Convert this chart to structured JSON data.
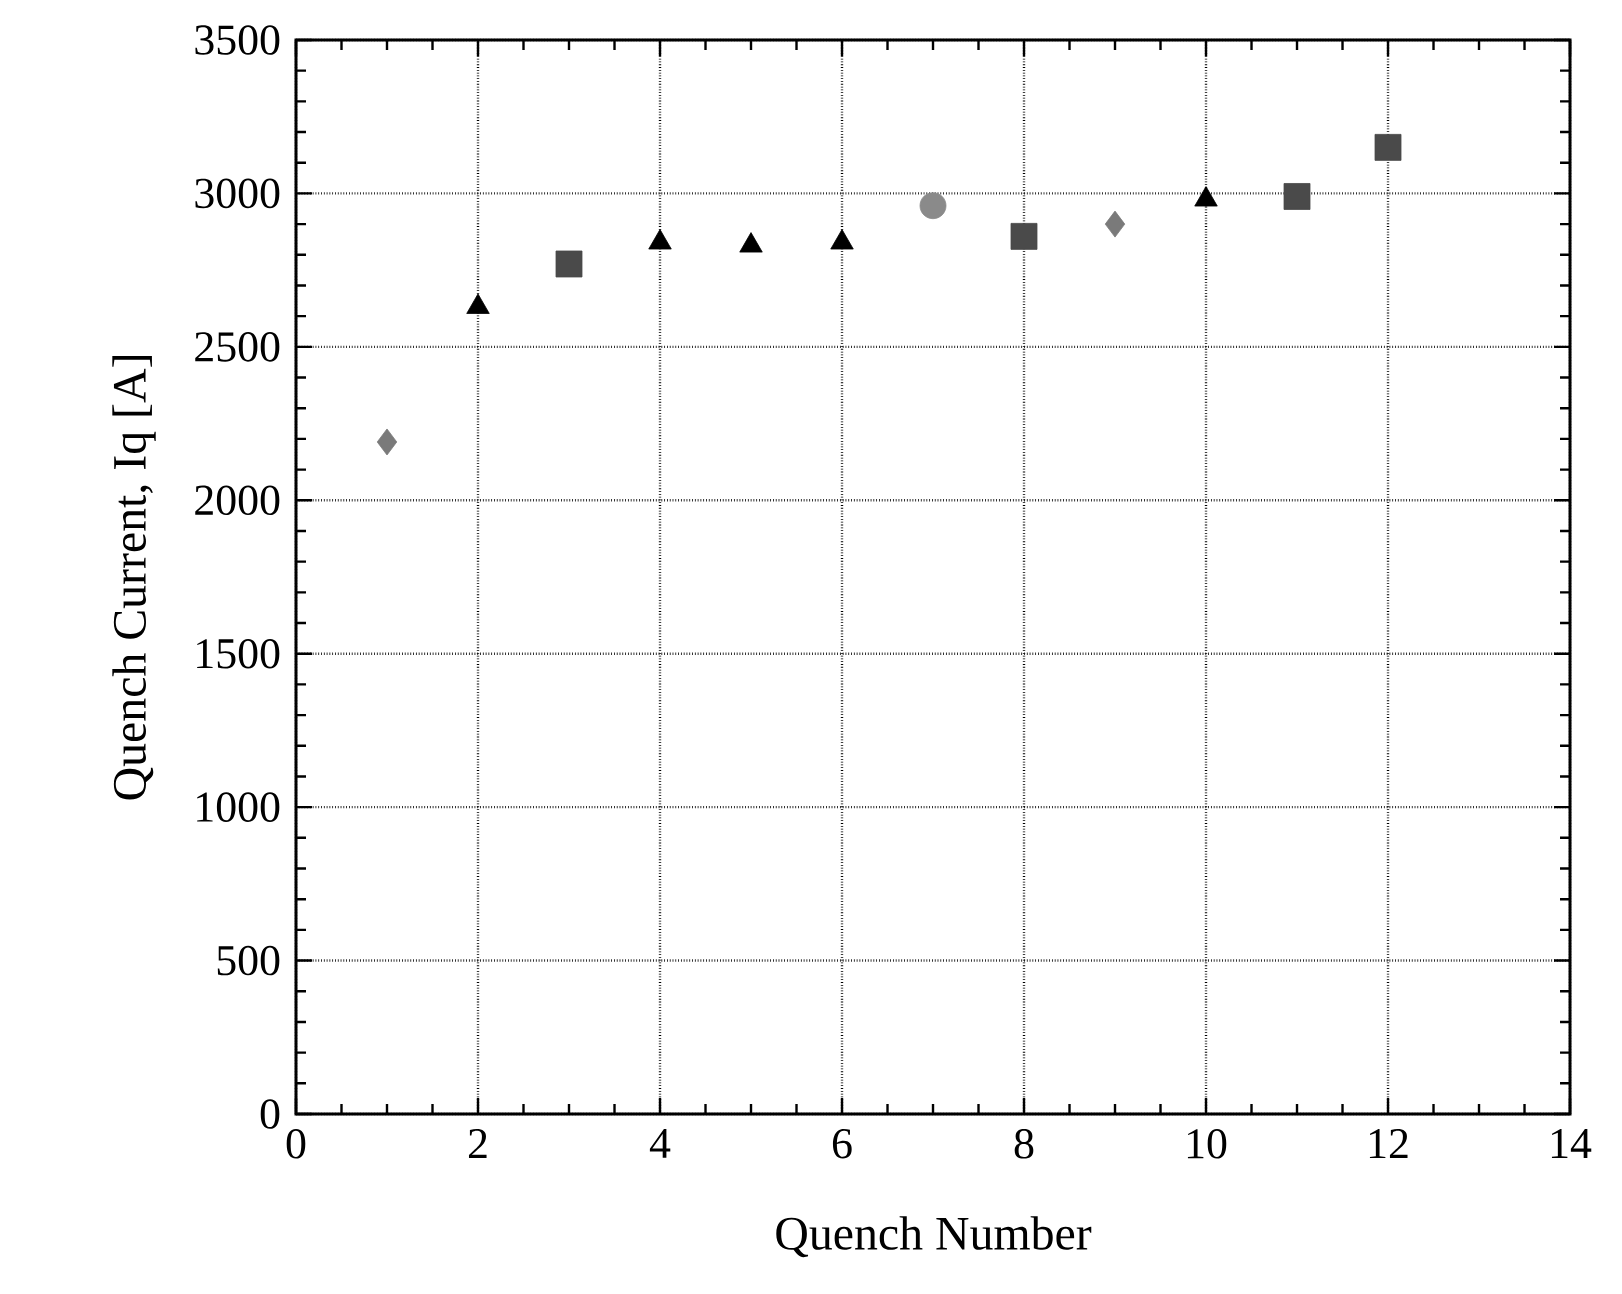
{
  "chart_data": {
    "type": "scatter",
    "xlabel": "Quench Number",
    "ylabel": "Quench Current, Iq [A]",
    "xlim": [
      0,
      14
    ],
    "xticks": [
      0,
      2,
      4,
      6,
      8,
      10,
      12,
      14
    ],
    "ylim": [
      0,
      3500
    ],
    "yticks": [
      0,
      500,
      1000,
      1500,
      2000,
      2500,
      3000,
      3500
    ],
    "grid": true,
    "series": [
      {
        "color": "#7a7a7a",
        "marker": "diamond",
        "x": [
          1,
          9
        ],
        "values": [
          2190,
          2900
        ]
      },
      {
        "color": "#000000",
        "marker": "triangle",
        "x": [
          2,
          4,
          5,
          6,
          10
        ],
        "values": [
          2630,
          2840,
          2830,
          2840,
          2980
        ]
      },
      {
        "color": "#4a4a4a",
        "marker": "square",
        "x": [
          3,
          8,
          11,
          12
        ],
        "values": [
          2770,
          2860,
          2990,
          3150
        ]
      },
      {
        "color": "#8a8a8a",
        "marker": "circle",
        "x": [
          7
        ],
        "values": [
          2960
        ]
      }
    ]
  }
}
